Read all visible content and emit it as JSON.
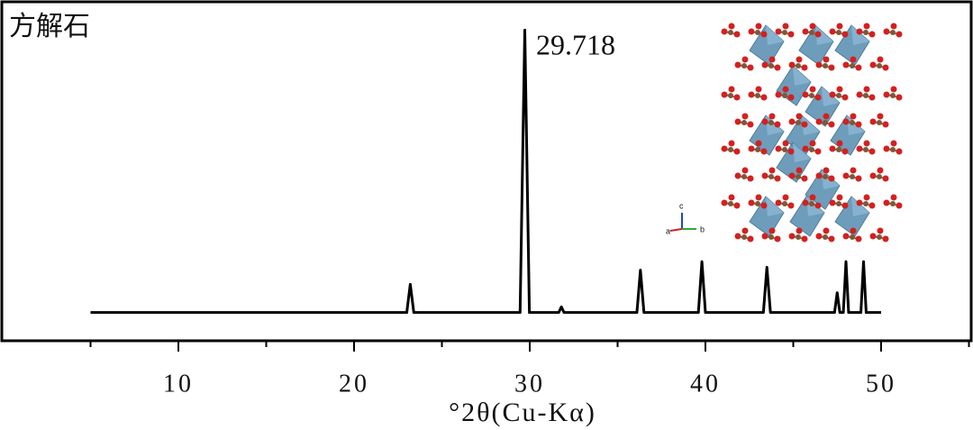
{
  "chart_data": {
    "type": "line",
    "title": "方解石",
    "x_label": "°2θ(Cu-Kα)",
    "annotation": "29.718",
    "structure_axes": [
      "a",
      "b",
      "c"
    ],
    "x": [
      5,
      23.0,
      23.2,
      23.4,
      29.45,
      29.718,
      29.98,
      31.65,
      31.8,
      31.95,
      36.1,
      36.3,
      36.5,
      39.6,
      39.8,
      40.0,
      43.3,
      43.5,
      43.7,
      47.35,
      47.5,
      47.65,
      47.85,
      48.0,
      48.15,
      48.85,
      49.0,
      49.15,
      50
    ],
    "series": [
      {
        "name": "方解石",
        "color": "#000000",
        "values": [
          0,
          0,
          10,
          0,
          0,
          100,
          0,
          0,
          2,
          0,
          0,
          15,
          0,
          0,
          18,
          0,
          0,
          16,
          0,
          0,
          7,
          0,
          0,
          18,
          0,
          0,
          18,
          0,
          0
        ]
      }
    ],
    "xlim": [
      0,
      55
    ],
    "ylim": [
      -10,
      110
    ],
    "xticks": [
      10,
      20,
      30,
      40,
      50
    ],
    "xminorticks": [
      5,
      15,
      25,
      35,
      45,
      55
    ],
    "grid": false
  }
}
